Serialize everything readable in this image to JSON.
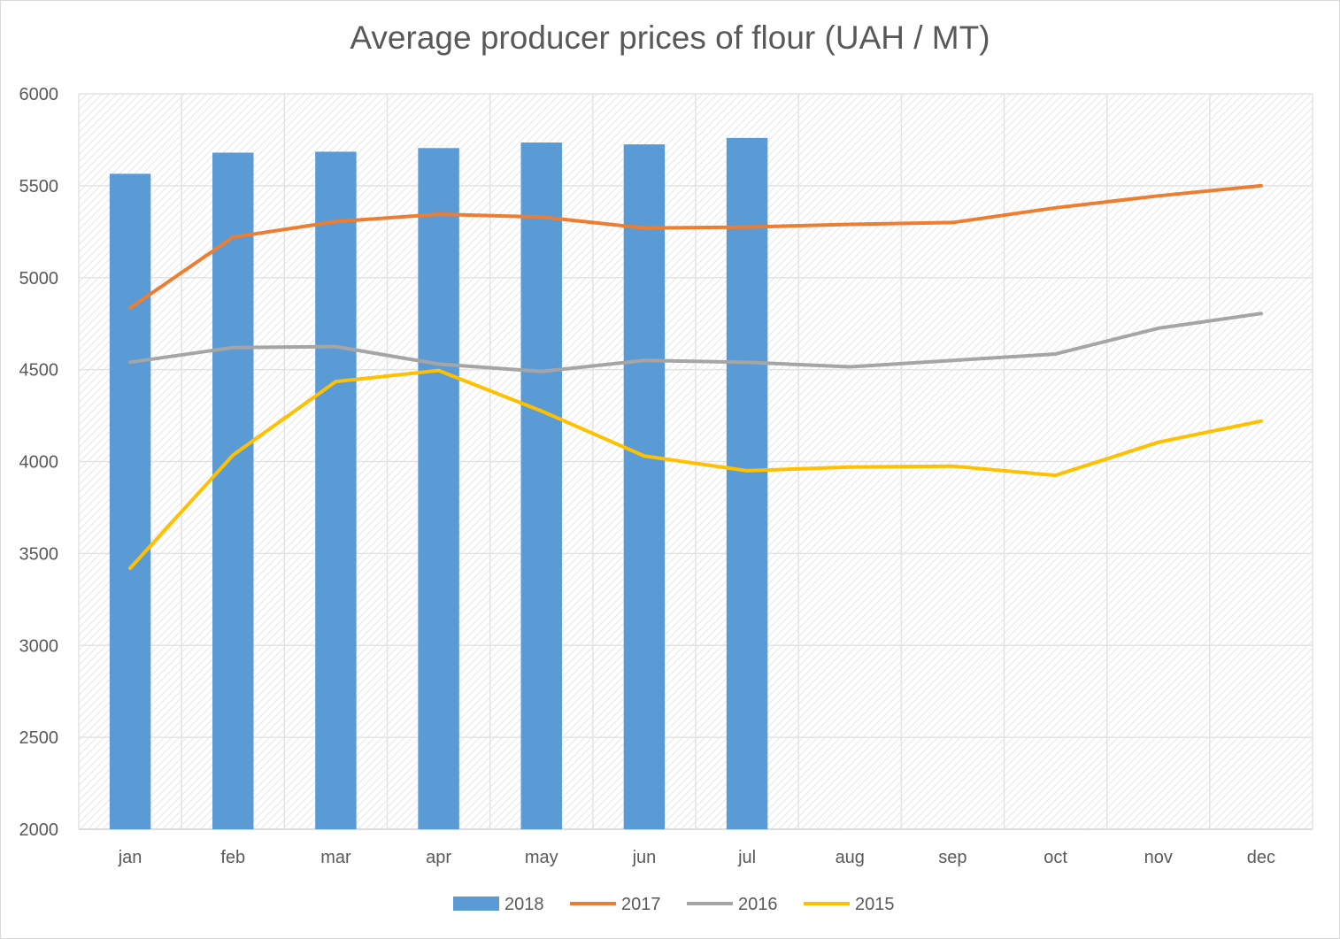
{
  "chart_data": {
    "type": "bar",
    "title": "Average producer prices of flour (UAH / MT)",
    "xlabel": "",
    "ylabel": "",
    "categories": [
      "jan",
      "feb",
      "mar",
      "apr",
      "may",
      "jun",
      "jul",
      "aug",
      "sep",
      "oct",
      "nov",
      "dec"
    ],
    "ylim": [
      2000,
      6000
    ],
    "yticks": [
      2000,
      2500,
      3000,
      3500,
      4000,
      4500,
      5000,
      5500,
      6000
    ],
    "grid": true,
    "legend_position": "bottom",
    "series": [
      {
        "name": "2018",
        "kind": "bar",
        "color": "#5b9bd5",
        "values": [
          5565,
          5680,
          5685,
          5705,
          5735,
          5725,
          5760,
          null,
          null,
          null,
          null,
          null
        ]
      },
      {
        "name": "2017",
        "kind": "line",
        "color": "#ed7d31",
        "values": [
          4835,
          5220,
          5305,
          5345,
          5330,
          5270,
          5275,
          5290,
          5300,
          5380,
          5445,
          5500
        ]
      },
      {
        "name": "2016",
        "kind": "line",
        "color": "#a5a5a5",
        "values": [
          4540,
          4620,
          4625,
          4530,
          4490,
          4550,
          4540,
          4515,
          4550,
          4585,
          4725,
          4805
        ]
      },
      {
        "name": "2015",
        "kind": "line",
        "color": "#ffc000",
        "values": [
          3420,
          4035,
          4435,
          4495,
          4275,
          4030,
          3950,
          3970,
          3975,
          3925,
          4105,
          4220
        ]
      }
    ]
  }
}
